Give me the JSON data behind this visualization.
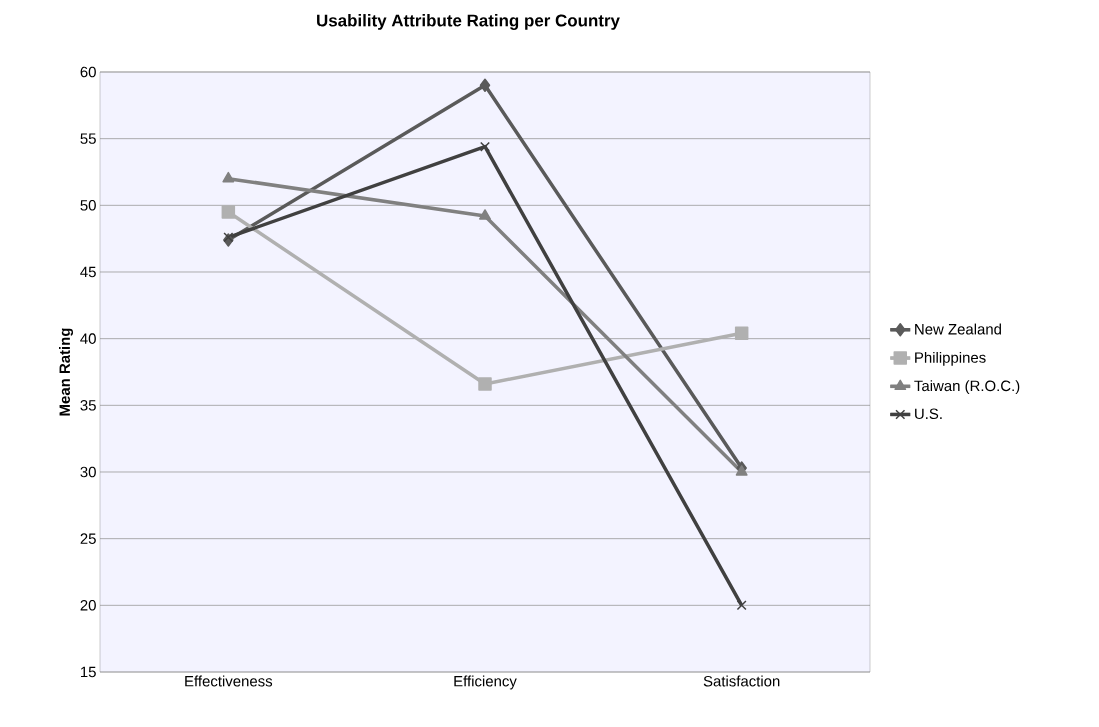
{
  "chart_data": {
    "type": "line",
    "title": "Usability Attribute Rating per Country",
    "ylabel": "Mean Rating",
    "categories": [
      "Effectiveness",
      "Efficiency",
      "Satisfaction"
    ],
    "series": [
      {
        "name": "New Zealand",
        "color": "#5a5a5a",
        "marker": "diamond",
        "values": [
          47.4,
          59.0,
          30.3
        ]
      },
      {
        "name": "Philippines",
        "color": "#b0b0b0",
        "marker": "square",
        "values": [
          49.5,
          36.6,
          40.4
        ]
      },
      {
        "name": "Taiwan (R.O.C.)",
        "color": "#808080",
        "marker": "triangle",
        "values": [
          52.0,
          49.2,
          30.0
        ]
      },
      {
        "name": "U.S.",
        "color": "#404040",
        "marker": "cross",
        "values": [
          47.6,
          54.4,
          20.0
        ]
      }
    ],
    "ylim": [
      15,
      60
    ],
    "yticks": [
      15,
      20,
      25,
      30,
      35,
      40,
      45,
      50,
      55,
      60
    ],
    "grid": "y",
    "legend": "right",
    "line_style": "solid"
  }
}
